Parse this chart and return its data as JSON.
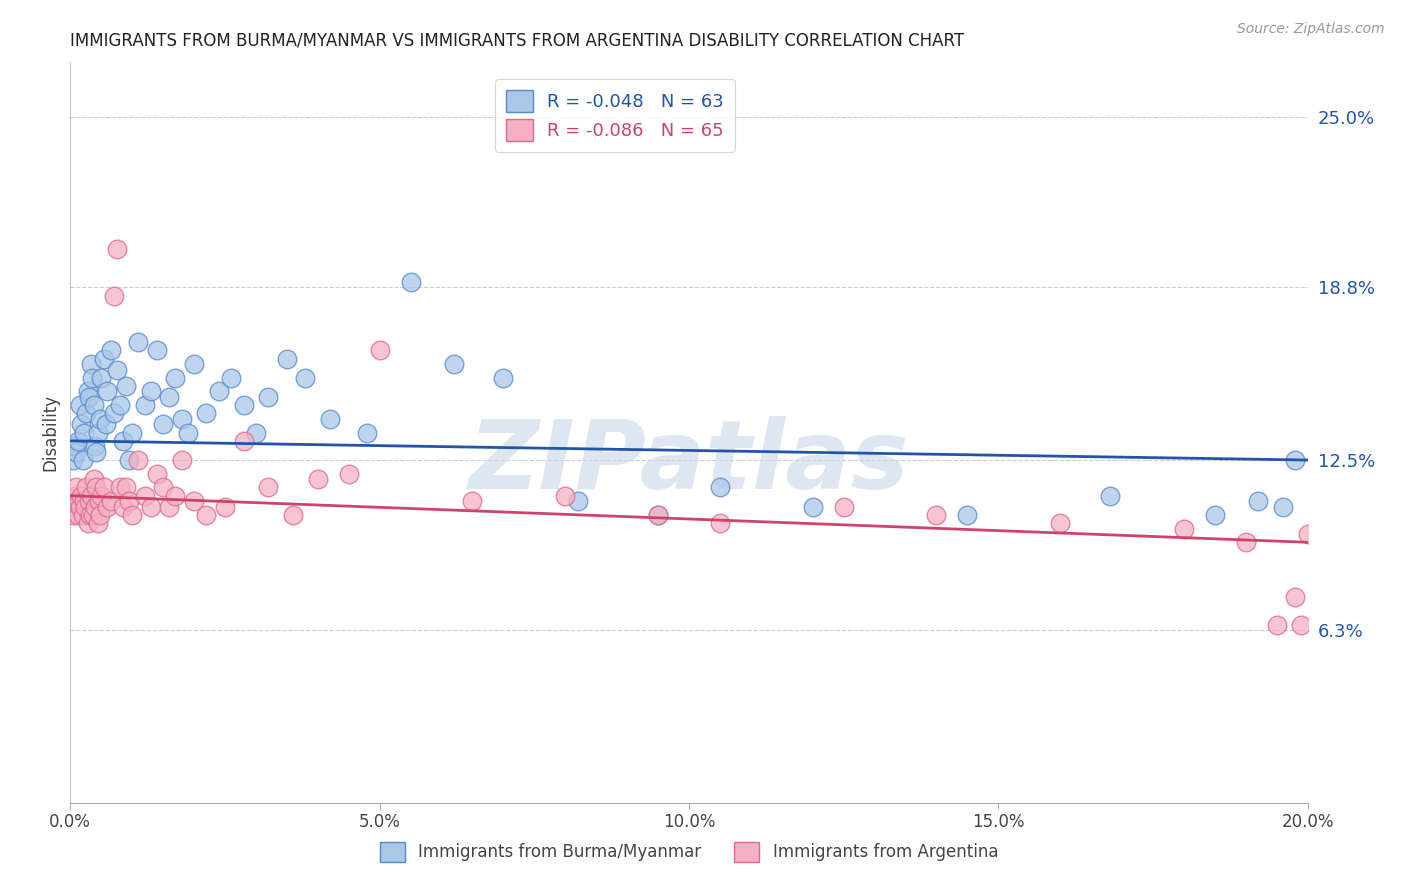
{
  "title": "IMMIGRANTS FROM BURMA/MYANMAR VS IMMIGRANTS FROM ARGENTINA DISABILITY CORRELATION CHART",
  "source": "Source: ZipAtlas.com",
  "ylabel": "Disability",
  "xlim": [
    0.0,
    20.0
  ],
  "ylim": [
    0.0,
    27.0
  ],
  "yticks": [
    6.3,
    12.5,
    18.8,
    25.0
  ],
  "ytick_labels": [
    "6.3%",
    "12.5%",
    "18.8%",
    "25.0%"
  ],
  "xticks": [
    0.0,
    5.0,
    10.0,
    15.0,
    20.0
  ],
  "xtick_labels": [
    "0.0%",
    "5.0%",
    "10.0%",
    "15.0%",
    "20.0%"
  ],
  "blue_label": "Immigrants from Burma/Myanmar",
  "pink_label": "Immigrants from Argentina",
  "blue_R": "-0.048",
  "blue_N": "63",
  "pink_R": "-0.086",
  "pink_N": "65",
  "blue_color": "#aac8e8",
  "pink_color": "#f5b0c5",
  "blue_edge_color": "#5588cc",
  "pink_edge_color": "#e06888",
  "blue_line_color": "#2255aa",
  "pink_line_color": "#cc4466",
  "watermark": "ZIPatlas",
  "watermark_color": "#c8d8e8",
  "background_color": "#ffffff",
  "grid_color": "#cccccc",
  "blue_line_start_y": 13.2,
  "blue_line_end_y": 12.5,
  "pink_line_start_y": 11.2,
  "pink_line_end_y": 9.5,
  "blue_x": [
    0.05,
    0.08,
    0.1,
    0.12,
    0.15,
    0.18,
    0.2,
    0.22,
    0.25,
    0.28,
    0.3,
    0.33,
    0.35,
    0.38,
    0.4,
    0.42,
    0.45,
    0.48,
    0.5,
    0.55,
    0.58,
    0.6,
    0.65,
    0.7,
    0.75,
    0.8,
    0.85,
    0.9,
    0.95,
    1.0,
    1.1,
    1.2,
    1.3,
    1.4,
    1.5,
    1.6,
    1.7,
    1.8,
    1.9,
    2.0,
    2.2,
    2.4,
    2.6,
    2.8,
    3.0,
    3.2,
    3.5,
    3.8,
    4.2,
    4.8,
    5.5,
    6.2,
    7.0,
    8.2,
    9.5,
    10.5,
    12.0,
    14.5,
    16.8,
    18.5,
    19.2,
    19.6,
    19.8
  ],
  "blue_y": [
    12.5,
    13.0,
    12.8,
    13.2,
    14.5,
    13.8,
    12.5,
    13.5,
    14.2,
    15.0,
    14.8,
    16.0,
    15.5,
    14.5,
    13.0,
    12.8,
    13.5,
    14.0,
    15.5,
    16.2,
    13.8,
    15.0,
    16.5,
    14.2,
    15.8,
    14.5,
    13.2,
    15.2,
    12.5,
    13.5,
    16.8,
    14.5,
    15.0,
    16.5,
    13.8,
    14.8,
    15.5,
    14.0,
    13.5,
    16.0,
    14.2,
    15.0,
    15.5,
    14.5,
    13.5,
    14.8,
    16.2,
    15.5,
    14.0,
    13.5,
    19.0,
    16.0,
    15.5,
    11.0,
    10.5,
    11.5,
    10.8,
    10.5,
    11.2,
    10.5,
    11.0,
    10.8,
    12.5
  ],
  "pink_x": [
    0.03,
    0.05,
    0.07,
    0.08,
    0.1,
    0.12,
    0.14,
    0.16,
    0.18,
    0.2,
    0.22,
    0.24,
    0.26,
    0.28,
    0.3,
    0.32,
    0.34,
    0.36,
    0.38,
    0.4,
    0.42,
    0.44,
    0.46,
    0.48,
    0.5,
    0.55,
    0.6,
    0.65,
    0.7,
    0.75,
    0.8,
    0.85,
    0.9,
    0.95,
    1.0,
    1.1,
    1.2,
    1.3,
    1.4,
    1.5,
    1.6,
    1.7,
    1.8,
    2.0,
    2.2,
    2.5,
    2.8,
    3.2,
    3.6,
    4.0,
    4.5,
    5.0,
    6.5,
    8.0,
    9.5,
    10.5,
    12.5,
    14.0,
    16.0,
    18.0,
    19.0,
    19.5,
    19.8,
    19.9,
    20.0
  ],
  "pink_y": [
    11.0,
    10.5,
    11.2,
    10.8,
    11.5,
    10.5,
    11.0,
    10.8,
    11.2,
    10.5,
    11.0,
    10.8,
    11.5,
    10.2,
    11.0,
    10.5,
    11.2,
    10.5,
    11.8,
    10.8,
    11.5,
    10.2,
    11.0,
    10.5,
    11.2,
    11.5,
    10.8,
    11.0,
    18.5,
    20.2,
    11.5,
    10.8,
    11.5,
    11.0,
    10.5,
    12.5,
    11.2,
    10.8,
    12.0,
    11.5,
    10.8,
    11.2,
    12.5,
    11.0,
    10.5,
    10.8,
    13.2,
    11.5,
    10.5,
    11.8,
    12.0,
    16.5,
    11.0,
    11.2,
    10.5,
    10.2,
    10.8,
    10.5,
    10.2,
    10.0,
    9.5,
    6.5,
    7.5,
    6.5,
    9.8
  ]
}
